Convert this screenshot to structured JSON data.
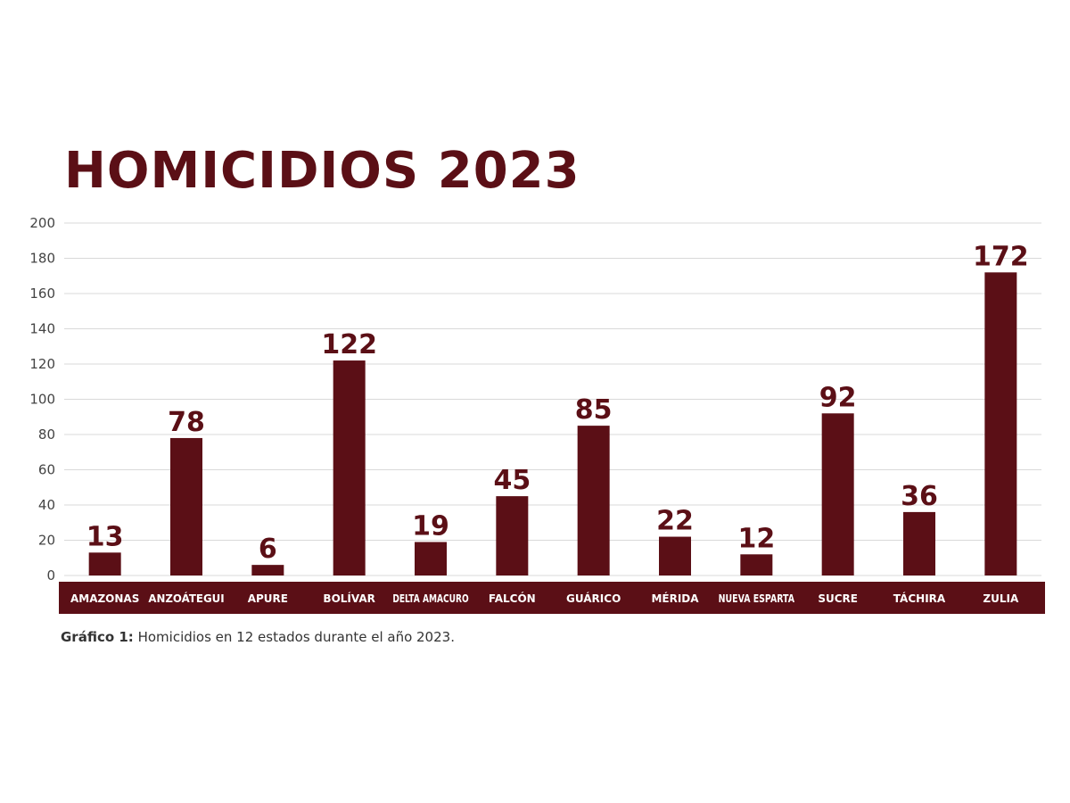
{
  "chart_data": {
    "type": "bar",
    "title": "HOMICIDIOS 2023",
    "categories": [
      "AMAZONAS",
      "ANZOÁTEGUI",
      "APURE",
      "BOLÍVAR",
      "DELTA AMACURO",
      "FALCÓN",
      "GUÁRICO",
      "MÉRIDA",
      "NUEVA ESPARTA",
      "SUCRE",
      "TÁCHIRA",
      "ZULIA"
    ],
    "values": [
      13,
      78,
      6,
      122,
      19,
      45,
      85,
      22,
      12,
      92,
      36,
      172
    ],
    "value_labels": [
      "13",
      "78",
      "6",
      "122",
      "19",
      "45",
      "85",
      "22",
      "12",
      "92",
      "36",
      "172"
    ],
    "yticks": [
      "0",
      "20",
      "40",
      "60",
      "80",
      "100",
      "120",
      "140",
      "160",
      "180",
      "200"
    ],
    "ylim": [
      0,
      200
    ],
    "grid": true,
    "legend": "none",
    "bar_color": "#5b0f16",
    "category_band_color": "#5b0f16"
  },
  "caption": {
    "label": "Gráfico 1:",
    "text": " Homicidios en 12 estados durante el año 2023."
  }
}
